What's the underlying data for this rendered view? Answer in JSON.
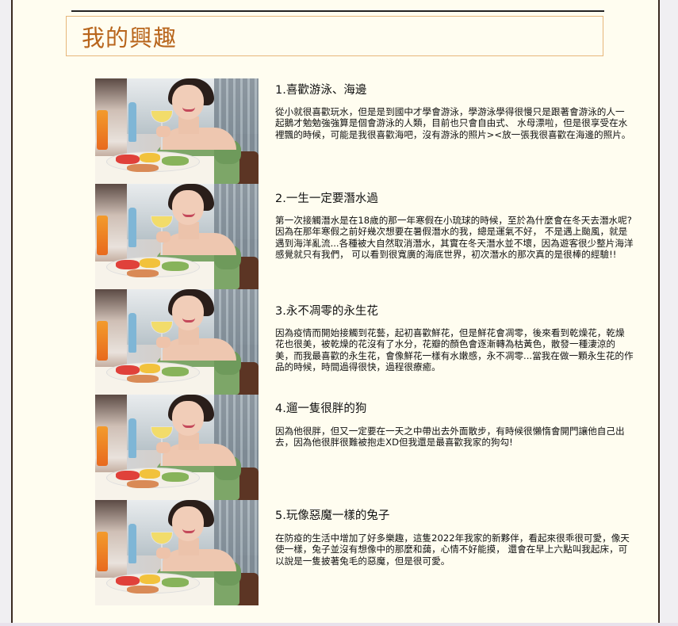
{
  "page": {
    "title": "我的興趣",
    "accent_color": "#b8651c",
    "title_border_color": "#e6b67a",
    "background_color": "#fffdf0"
  },
  "photos": [
    {
      "description_icon": "photo-icon"
    },
    {
      "description_icon": "photo-icon"
    },
    {
      "description_icon": "photo-icon"
    },
    {
      "description_icon": "photo-icon"
    },
    {
      "description_icon": "photo-icon"
    }
  ],
  "sections": [
    {
      "heading": "1.喜歡游泳、海邊",
      "body": "從小就很喜歡玩水，但是是到國中才學會游泳，學游泳學得很慢只是跟著會游泳的人一起鵝才勉勉強強算是個會游泳的人類，目前也只會自由式、 水母漂啦，但是很享受在水裡飄的時候，可能是我很喜歡海吧，沒有游泳的照片><放一張我很喜歡在海邊的照片。"
    },
    {
      "heading": "2.一生一定要潛水過",
      "body": "第一次接觸潛水是在18歲的那一年寒假在小琉球的時候，至於為什麼會在冬天去潛水呢? 因為在那年寒假之前好幾次想要在暑假潛水的我，總是運氣不好， 不是遇上颱風，就是遇到海洋亂流...各種被大自然取消潛水，其實在冬天潛水並不壞，因為遊客很少整片海洋感覺就只有我們， 可以看到很寬廣的海底世界，初次潛水的那次真的是很棒的經驗!!"
    },
    {
      "heading": "3.永不凋零的永生花",
      "body": "因為疫情而開始接觸到花藝，起初喜歡鮮花，但是鮮花會凋零，後來看到乾燥花，乾燥花也很美，被乾燥的花沒有了水分，花瓣的顏色會逐漸轉為枯黃色，散發一種淒涼的美，而我最喜歡的永生花，會像鮮花一樣有水嫩感，永不凋零...當我在做一顆永生花的作品的時候，時間過得很快，過程很療癒。"
    },
    {
      "heading": "4.遛一隻很胖的狗",
      "body": "因為他很胖，但又一定要在一天之中帶出去外面散步，有時候很懶惰會開門讓他自己出去，因為他很胖很難被抱走XD但我還是最喜歡我家的狗勾!"
    },
    {
      "heading": "5.玩像惡魔一樣的兔子",
      "body": "在防疫的生活中增加了好多樂趣，這隻2022年我家的新夥伴，看起來很乖很可愛，像天使一樣，兔子並沒有想像中的那麼和藹，心情不好能摸， 還會在早上六點叫我起床，可以說是一隻披著兔毛的惡魔，但是很可愛。"
    }
  ]
}
